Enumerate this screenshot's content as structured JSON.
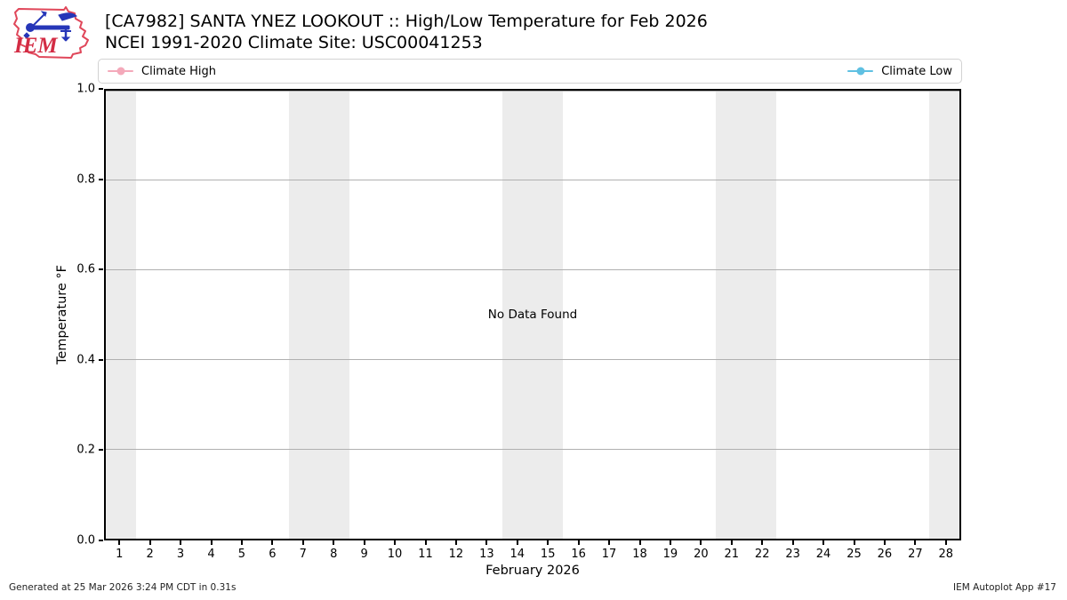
{
  "header": {
    "logo_text": "IEM",
    "title_line1": "[CA7982] SANTA YNEZ LOOKOUT :: High/Low Temperature for Feb 2026",
    "title_line2": "NCEI 1991-2020 Climate Site: USC00041253"
  },
  "legend": {
    "items": [
      {
        "label": "Climate High",
        "color": "#f4a9ba"
      },
      {
        "label": "Climate Low",
        "color": "#5fc0e2"
      }
    ]
  },
  "chart_data": {
    "type": "line",
    "title": "[CA7982] SANTA YNEZ LOOKOUT :: High/Low Temperature for Feb 2026",
    "subtitle": "NCEI 1991-2020 Climate Site: USC00041253",
    "xlabel": "February 2026",
    "ylabel": "Temperature °F",
    "xlim": [
      0.5,
      28.5
    ],
    "ylim": [
      0.0,
      1.0
    ],
    "x_ticks": [
      1,
      2,
      3,
      4,
      5,
      6,
      7,
      8,
      9,
      10,
      11,
      12,
      13,
      14,
      15,
      16,
      17,
      18,
      19,
      20,
      21,
      22,
      23,
      24,
      25,
      26,
      27,
      28
    ],
    "y_ticks": [
      0.0,
      0.2,
      0.4,
      0.6,
      0.8,
      1.0
    ],
    "y_tick_labels": [
      "0.0",
      "0.2",
      "0.4",
      "0.6",
      "0.8",
      "1.0"
    ],
    "grid": true,
    "grid_color": "#b0b0b0",
    "weekend_bands": [
      [
        0.5,
        1.5
      ],
      [
        6.5,
        8.5
      ],
      [
        13.5,
        15.5
      ],
      [
        20.5,
        22.5
      ],
      [
        27.5,
        28.5
      ]
    ],
    "band_color": "#ececec",
    "series": [
      {
        "name": "Climate High",
        "color": "#f4a9ba",
        "x": [],
        "y": []
      },
      {
        "name": "Climate Low",
        "color": "#5fc0e2",
        "x": [],
        "y": []
      }
    ],
    "no_data_text": "No Data Found",
    "legend_position": "top full-width bar; Climate High left, Climate Low right"
  },
  "footer": {
    "generated_text": "Generated at 25 Mar 2026 3:24 PM CDT in 0.31s",
    "app_text": "IEM Autoplot App #17"
  }
}
